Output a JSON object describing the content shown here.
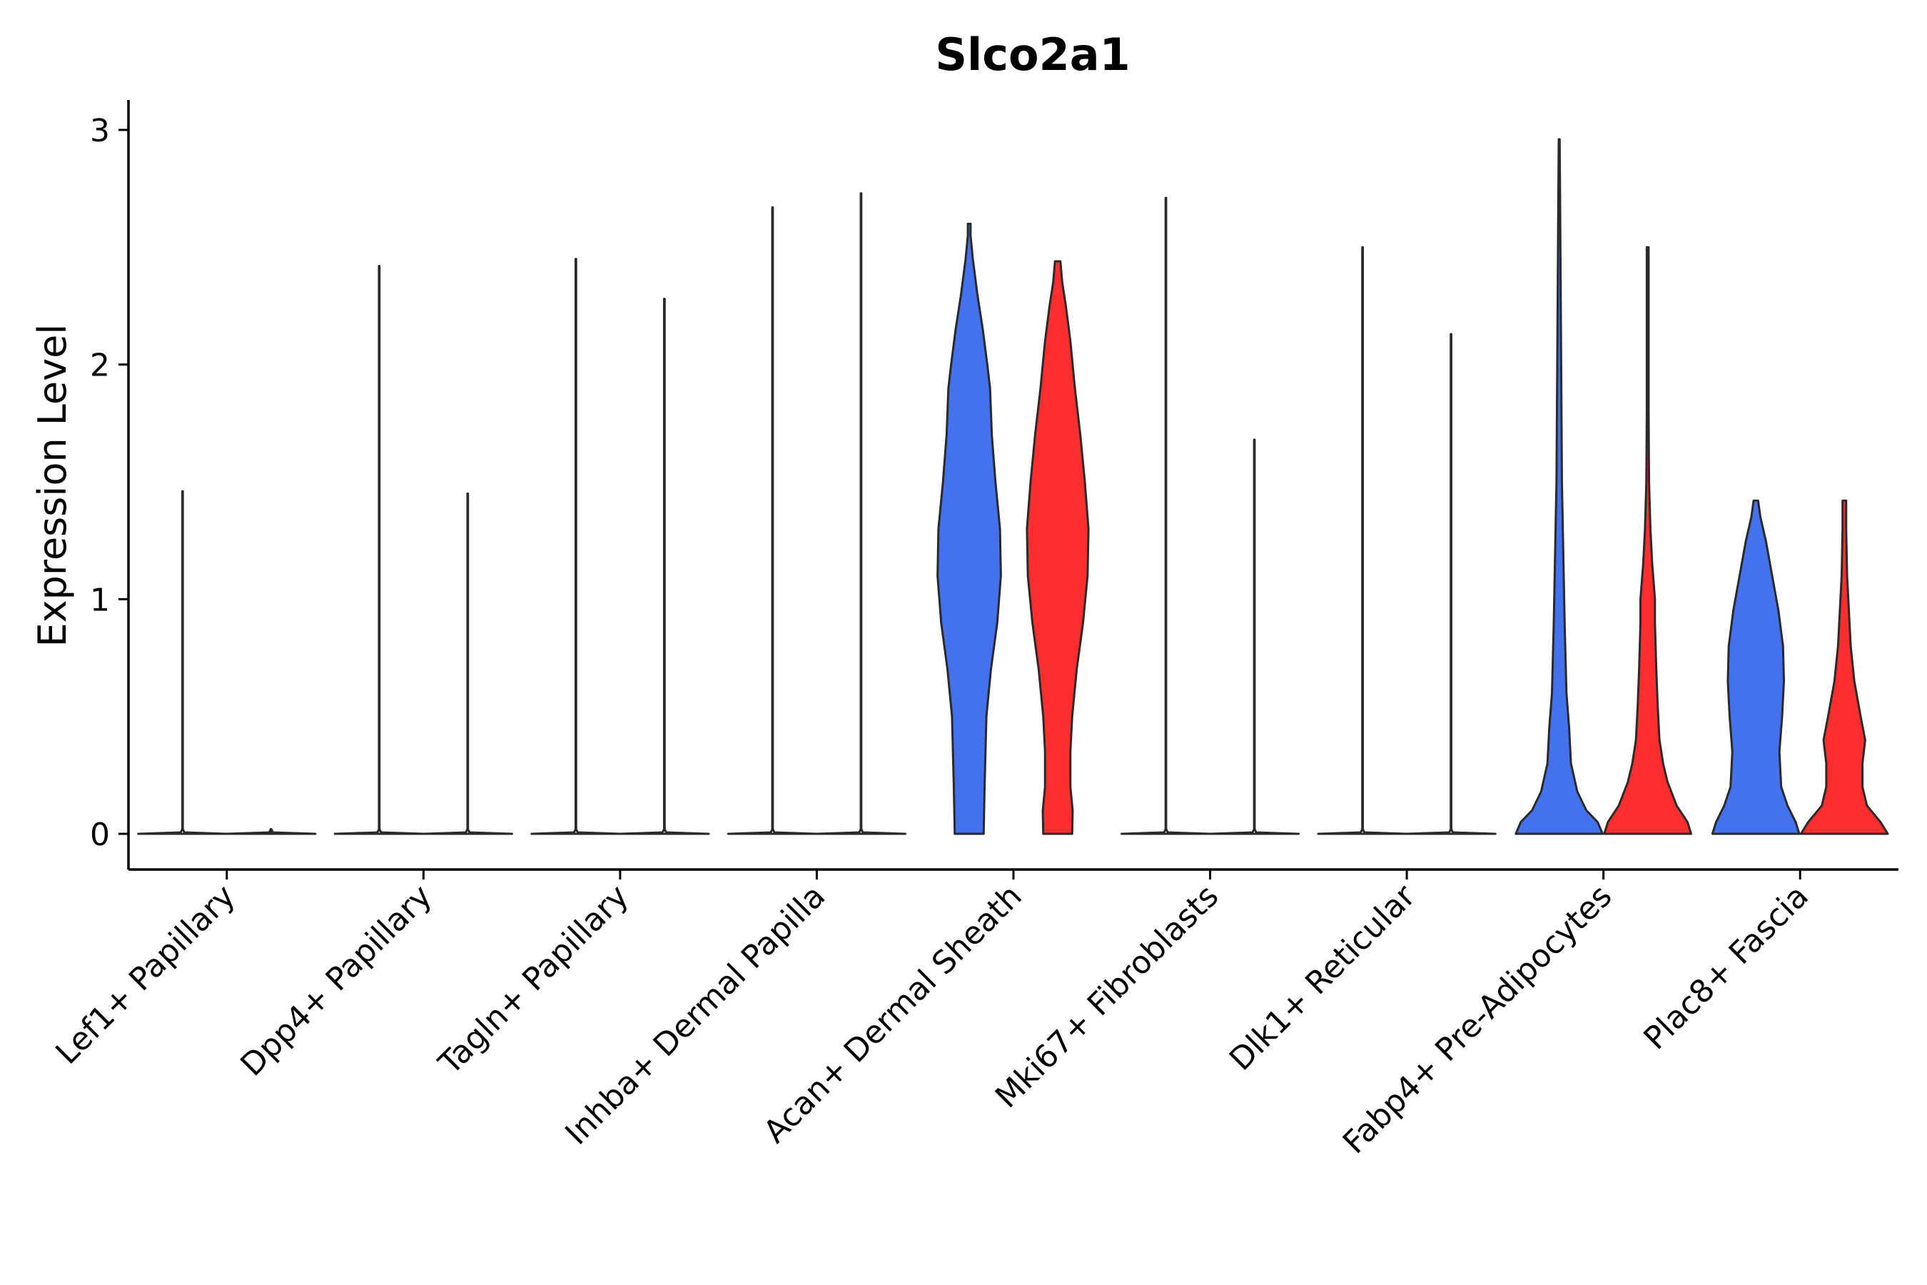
{
  "chart_data": {
    "type": "violin",
    "title": "Slco2a1",
    "xlabel": "",
    "ylabel": "Expression Level",
    "ylim": [
      -0.15,
      3.12
    ],
    "yticks": [
      0,
      1,
      2,
      3
    ],
    "grid": false,
    "colors": {
      "group1": "#4472EE",
      "group2": "#FF2E2E",
      "flat": "#ffffff",
      "stroke": "#2a2a2a"
    },
    "categories": [
      "Lef1+ Papillary",
      "Dpp4+ Papillary",
      "Tagln+ Papillary",
      "Inhba+ Dermal Papilla",
      "Acan+ Dermal Sheath",
      "Mki67+ Fibroblasts",
      "Dlk1+ Reticular",
      "Fabp4+ Pre-Adipocytes",
      "Plac8+ Fascia"
    ],
    "series": [
      {
        "name": "group1",
        "color": "#4472EE",
        "max": [
          1.46,
          2.42,
          2.45,
          2.67,
          2.6,
          2.71,
          2.5,
          2.96,
          1.42
        ],
        "filled": [
          false,
          false,
          false,
          false,
          true,
          false,
          false,
          true,
          true
        ]
      },
      {
        "name": "group2",
        "color": "#FF2E2E",
        "max": [
          0.0,
          1.45,
          2.28,
          2.73,
          2.44,
          1.68,
          2.13,
          2.5,
          1.42
        ],
        "filled": [
          false,
          false,
          false,
          false,
          true,
          false,
          false,
          true,
          true
        ]
      }
    ],
    "profiles": {
      "Acan+ Dermal Sheath|group1": [
        [
          0,
          0.32
        ],
        [
          0.1,
          0.33
        ],
        [
          0.2,
          0.34
        ],
        [
          0.35,
          0.36
        ],
        [
          0.5,
          0.38
        ],
        [
          0.7,
          0.48
        ],
        [
          0.9,
          0.62
        ],
        [
          1.1,
          0.7
        ],
        [
          1.3,
          0.68
        ],
        [
          1.5,
          0.58
        ],
        [
          1.7,
          0.5
        ],
        [
          1.9,
          0.46
        ],
        [
          2.0,
          0.4
        ],
        [
          2.15,
          0.3
        ],
        [
          2.3,
          0.18
        ],
        [
          2.45,
          0.08
        ],
        [
          2.55,
          0.03
        ],
        [
          2.6,
          0.03
        ]
      ],
      "Acan+ Dermal Sheath|group2": [
        [
          0,
          0.32
        ],
        [
          0.1,
          0.33
        ],
        [
          0.2,
          0.28
        ],
        [
          0.35,
          0.28
        ],
        [
          0.5,
          0.32
        ],
        [
          0.7,
          0.42
        ],
        [
          0.9,
          0.56
        ],
        [
          1.1,
          0.66
        ],
        [
          1.3,
          0.68
        ],
        [
          1.5,
          0.6
        ],
        [
          1.7,
          0.5
        ],
        [
          1.9,
          0.38
        ],
        [
          2.1,
          0.28
        ],
        [
          2.25,
          0.18
        ],
        [
          2.35,
          0.1
        ],
        [
          2.44,
          0.06
        ]
      ],
      "Fabp4+ Pre-Adipocytes|group1": [
        [
          0,
          0.96
        ],
        [
          0.05,
          0.85
        ],
        [
          0.1,
          0.6
        ],
        [
          0.18,
          0.4
        ],
        [
          0.3,
          0.26
        ],
        [
          0.45,
          0.22
        ],
        [
          0.6,
          0.16
        ],
        [
          0.9,
          0.12
        ],
        [
          1.2,
          0.09
        ],
        [
          1.5,
          0.06
        ],
        [
          1.8,
          0.05
        ],
        [
          2.1,
          0.04
        ],
        [
          2.4,
          0.03
        ],
        [
          2.7,
          0.02
        ],
        [
          2.96,
          0.01
        ]
      ],
      "Fabp4+ Pre-Adipocytes|group2": [
        [
          0,
          0.96
        ],
        [
          0.05,
          0.88
        ],
        [
          0.12,
          0.64
        ],
        [
          0.22,
          0.44
        ],
        [
          0.3,
          0.34
        ],
        [
          0.4,
          0.26
        ],
        [
          0.55,
          0.22
        ],
        [
          0.7,
          0.19
        ],
        [
          0.9,
          0.16
        ],
        [
          1.0,
          0.16
        ],
        [
          1.15,
          0.1
        ],
        [
          1.3,
          0.06
        ],
        [
          1.5,
          0.03
        ],
        [
          1.8,
          0.02
        ],
        [
          2.1,
          0.02
        ],
        [
          2.5,
          0.02
        ]
      ],
      "Plac8+ Fascia|group1": [
        [
          0,
          0.96
        ],
        [
          0.05,
          0.88
        ],
        [
          0.12,
          0.7
        ],
        [
          0.2,
          0.56
        ],
        [
          0.35,
          0.52
        ],
        [
          0.5,
          0.58
        ],
        [
          0.65,
          0.62
        ],
        [
          0.8,
          0.6
        ],
        [
          0.95,
          0.5
        ],
        [
          1.1,
          0.36
        ],
        [
          1.25,
          0.22
        ],
        [
          1.35,
          0.1
        ],
        [
          1.42,
          0.05
        ]
      ],
      "Plac8+ Fascia|group2": [
        [
          0,
          0.96
        ],
        [
          0.05,
          0.8
        ],
        [
          0.12,
          0.5
        ],
        [
          0.2,
          0.4
        ],
        [
          0.3,
          0.4
        ],
        [
          0.4,
          0.46
        ],
        [
          0.5,
          0.36
        ],
        [
          0.65,
          0.22
        ],
        [
          0.8,
          0.14
        ],
        [
          0.95,
          0.1
        ],
        [
          1.1,
          0.06
        ],
        [
          1.3,
          0.04
        ],
        [
          1.42,
          0.04
        ]
      ]
    }
  }
}
